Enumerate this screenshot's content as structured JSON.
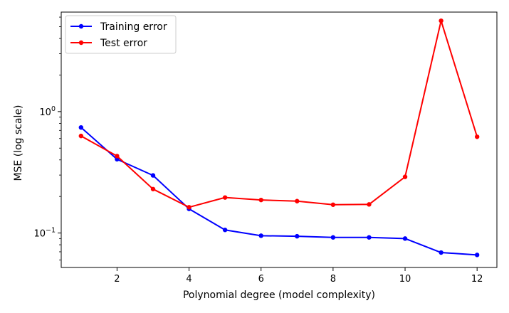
{
  "chart_data": {
    "type": "line",
    "xlabel": "Polynomial degree (model complexity)",
    "ylabel": "MSE (log scale)",
    "yscale": "log",
    "xlim": [
      0.45,
      12.55
    ],
    "ylim": [
      0.052,
      6.6
    ],
    "x_ticks": [
      2,
      4,
      6,
      8,
      10,
      12
    ],
    "y_major_ticks": [
      {
        "value": 0.1,
        "base": "10",
        "exp": "−1"
      },
      {
        "value": 1,
        "base": "10",
        "exp": "0"
      }
    ],
    "legend_position": "top-left",
    "grid": false,
    "x": [
      1,
      2,
      3,
      4,
      5,
      6,
      7,
      8,
      9,
      10,
      11,
      12
    ],
    "series": [
      {
        "name": "Training error",
        "color": "#0000ff",
        "values": [
          0.74,
          0.405,
          0.298,
          0.158,
          0.106,
          0.095,
          0.094,
          0.092,
          0.092,
          0.09,
          0.069,
          0.066
        ]
      },
      {
        "name": "Test error",
        "color": "#ff0000",
        "values": [
          0.63,
          0.43,
          0.23,
          0.163,
          0.196,
          0.187,
          0.183,
          0.171,
          0.172,
          0.29,
          5.6,
          0.62
        ]
      }
    ]
  }
}
